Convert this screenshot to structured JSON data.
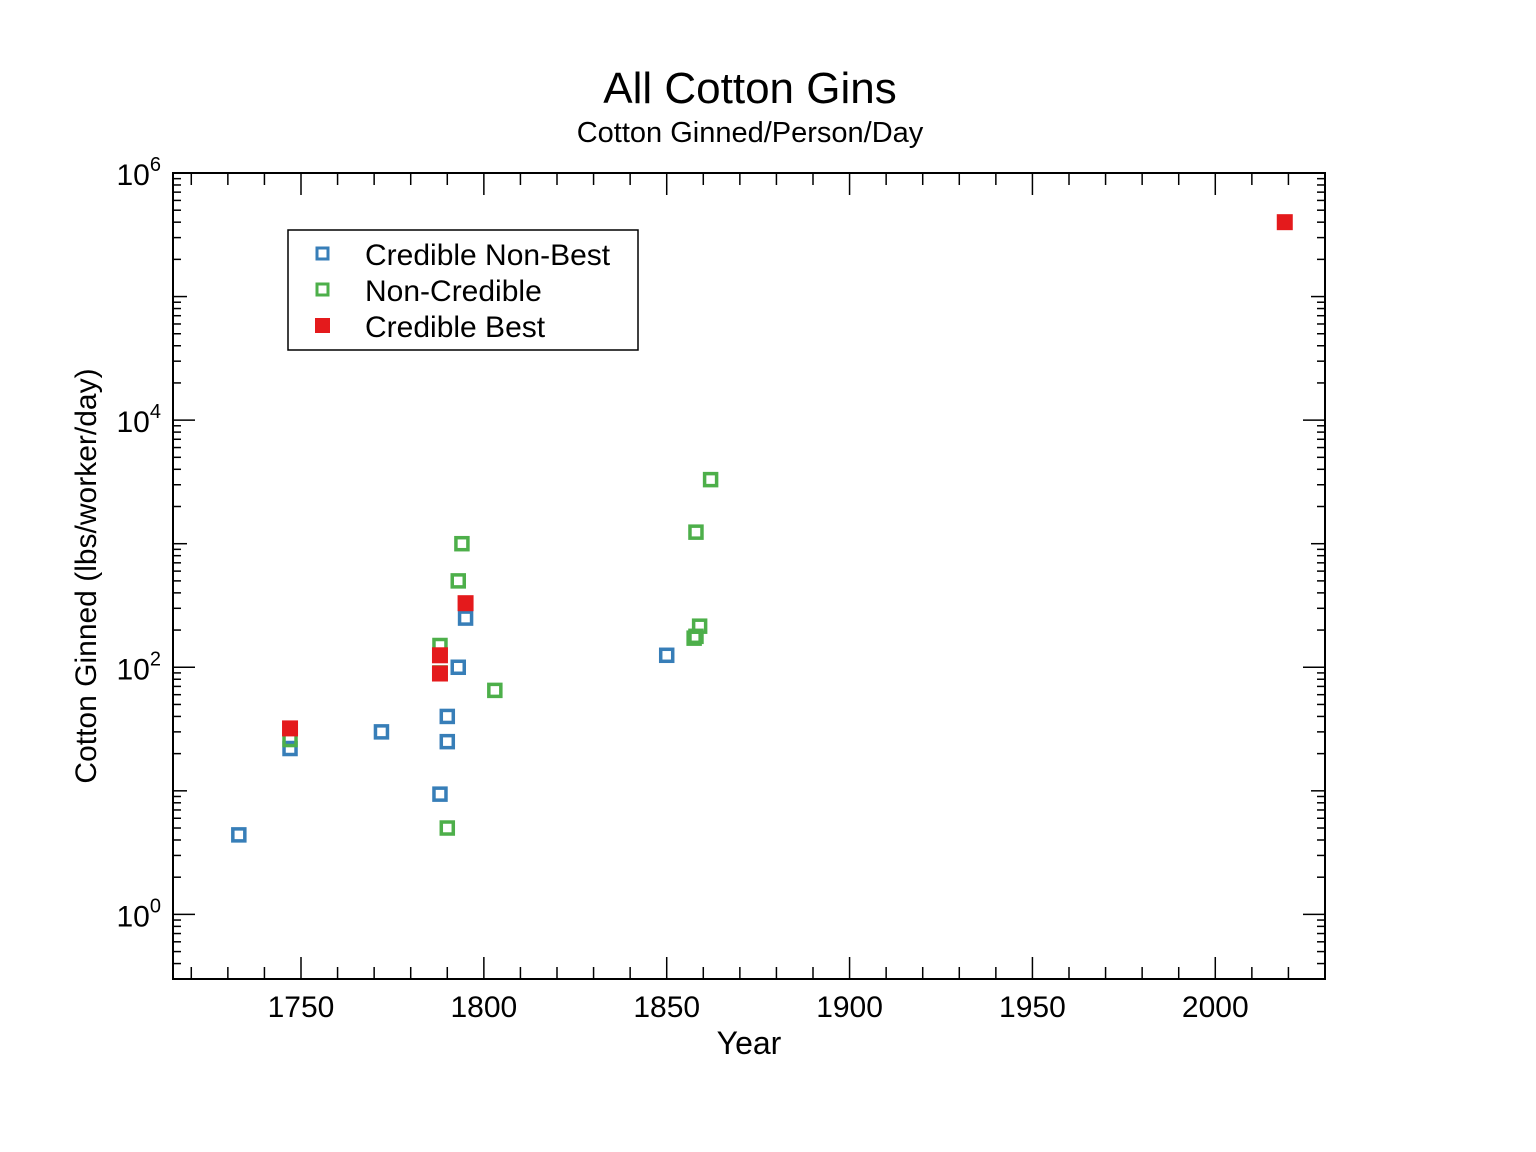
{
  "chart_data": {
    "type": "scatter",
    "title": "All Cotton Gins",
    "subtitle": "Cotton Ginned/Person/Day",
    "xlabel": "Year",
    "ylabel": "Cotton Ginned (lbs/worker/day)",
    "xlim": [
      1715,
      2030
    ],
    "ylim": [
      0.3,
      1000000
    ],
    "yscale": "log",
    "x_ticks": [
      1750,
      1800,
      1850,
      1900,
      1950,
      2000
    ],
    "y_ticks": [
      {
        "base": "10",
        "exp": "0",
        "value": 1
      },
      {
        "base": "10",
        "exp": "2",
        "value": 100
      },
      {
        "base": "10",
        "exp": "4",
        "value": 10000
      },
      {
        "base": "10",
        "exp": "6",
        "value": 1000000
      }
    ],
    "grid": false,
    "legend_position": "top-left",
    "series": [
      {
        "name": "Credible Non-Best",
        "color": "#377eb8",
        "marker": "open-square",
        "points": [
          [
            1733,
            4.4
          ],
          [
            1747,
            22
          ],
          [
            1772,
            30
          ],
          [
            1788,
            9.4
          ],
          [
            1790,
            25
          ],
          [
            1790,
            40
          ],
          [
            1793,
            100
          ],
          [
            1795,
            250
          ],
          [
            1850,
            125
          ]
        ]
      },
      {
        "name": "Non-Credible",
        "color": "#4daf4a",
        "marker": "open-square",
        "points": [
          [
            1747,
            26
          ],
          [
            1788,
            150
          ],
          [
            1788,
            90
          ],
          [
            1790,
            5
          ],
          [
            1793,
            500
          ],
          [
            1794,
            1000
          ],
          [
            1803,
            65
          ],
          [
            1858,
            1240
          ],
          [
            1862,
            3300
          ],
          [
            1859,
            215
          ],
          [
            1858,
            178
          ],
          [
            1857.5,
            172
          ]
        ]
      },
      {
        "name": "Credible Best",
        "color": "#e41a1c",
        "marker": "filled-square",
        "points": [
          [
            1747,
            32
          ],
          [
            1788,
            125
          ],
          [
            1788,
            89
          ],
          [
            1795,
            330
          ],
          [
            2019,
            400000
          ]
        ]
      }
    ]
  }
}
